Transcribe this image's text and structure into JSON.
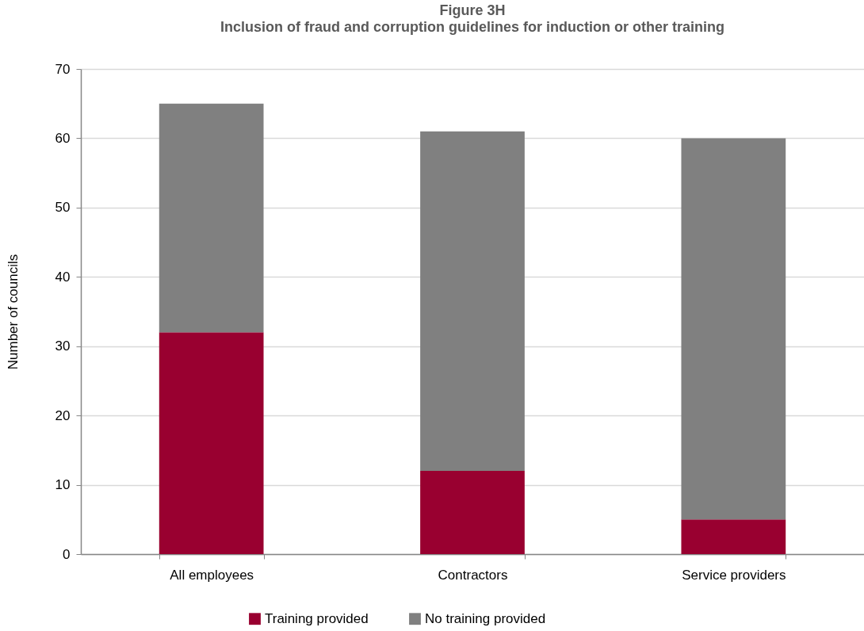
{
  "chart_data": {
    "type": "bar",
    "title": "Figure 3H",
    "subtitle": "Inclusion of fraud and corruption guidelines for induction or other training",
    "ylabel": "Number of councils",
    "categories": [
      "All employees",
      "Contractors",
      "Service providers"
    ],
    "series": [
      {
        "name": "Training provided",
        "color": "#990030",
        "values": [
          32,
          12,
          5
        ]
      },
      {
        "name": "No training provided",
        "color": "#808080",
        "values": [
          33,
          49,
          55
        ]
      }
    ],
    "stacked": true,
    "ylim": [
      0,
      70
    ],
    "yticks": [
      0,
      10,
      20,
      30,
      40,
      50,
      60,
      70
    ],
    "grid": "y",
    "legend": "bottom"
  }
}
